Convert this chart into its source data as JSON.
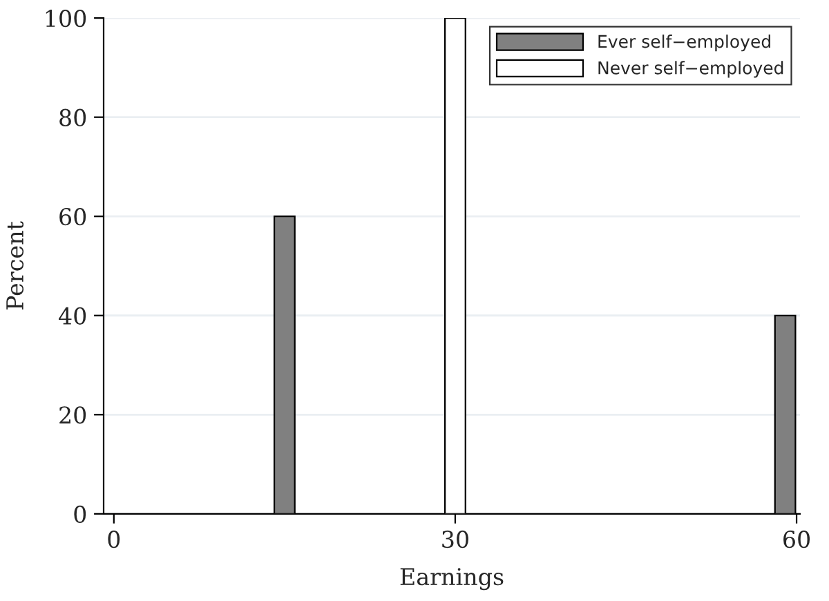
{
  "chart_data": {
    "type": "bar",
    "xlabel": "Earnings",
    "ylabel": "Percent",
    "series": [
      {
        "name": "Ever self−employed",
        "color": "#808080",
        "x": [
          15,
          59
        ],
        "values": [
          60,
          40
        ]
      },
      {
        "name": "Never self−employed",
        "color": "#ffffff",
        "x": [
          30
        ],
        "values": [
          100
        ]
      }
    ],
    "xlim": [
      -0.9,
      60.3
    ],
    "xticks": [
      0,
      30,
      60
    ],
    "ylim": [
      0,
      100
    ],
    "yticks": [
      0,
      20,
      40,
      60,
      80,
      100
    ],
    "grid": "y",
    "legend": "top right"
  }
}
